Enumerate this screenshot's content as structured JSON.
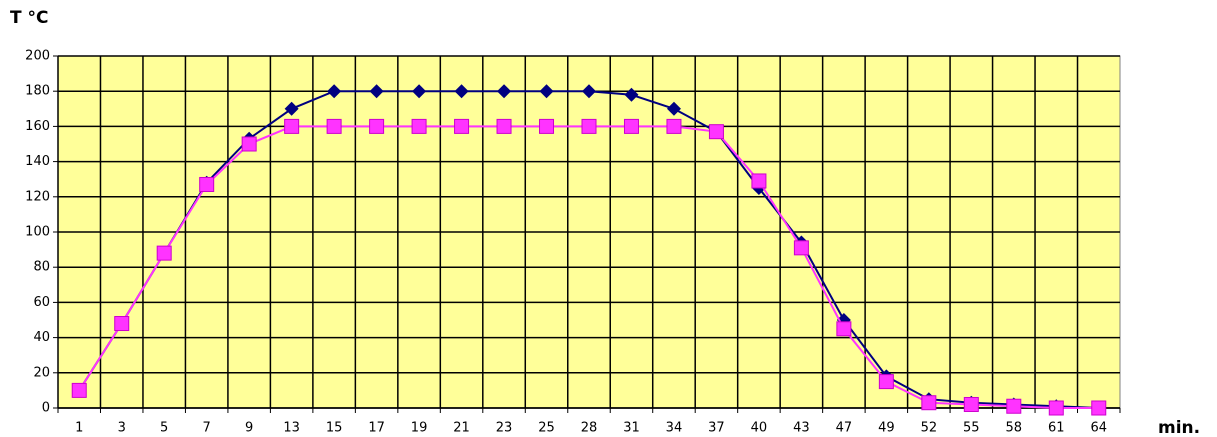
{
  "chart_data": {
    "type": "line",
    "y_label": "T °C",
    "x_label": "min.",
    "categories": [
      "1",
      "3",
      "5",
      "7",
      "9",
      "13",
      "15",
      "17",
      "19",
      "21",
      "23",
      "25",
      "28",
      "31",
      "34",
      "37",
      "40",
      "43",
      "47",
      "49",
      "52",
      "55",
      "58",
      "61",
      "64"
    ],
    "series": [
      {
        "color": "#000080",
        "marker": "diamond",
        "values": [
          10,
          48,
          88,
          128,
          153,
          170,
          180,
          180,
          180,
          180,
          180,
          180,
          180,
          178,
          170,
          157,
          125,
          94,
          50,
          18,
          5,
          3,
          2,
          1,
          0
        ]
      },
      {
        "color": "#ff33ff",
        "marker": "square",
        "values": [
          10,
          48,
          88,
          127,
          150,
          160,
          160,
          160,
          160,
          160,
          160,
          160,
          160,
          160,
          160,
          157,
          129,
          91,
          45,
          15,
          3,
          2,
          1,
          0,
          0
        ]
      }
    ],
    "ylim": [
      0,
      200
    ],
    "yticks": [
      0,
      20,
      40,
      60,
      80,
      100,
      120,
      140,
      160,
      180,
      200
    ],
    "grid": true,
    "background": "#ffff99"
  }
}
